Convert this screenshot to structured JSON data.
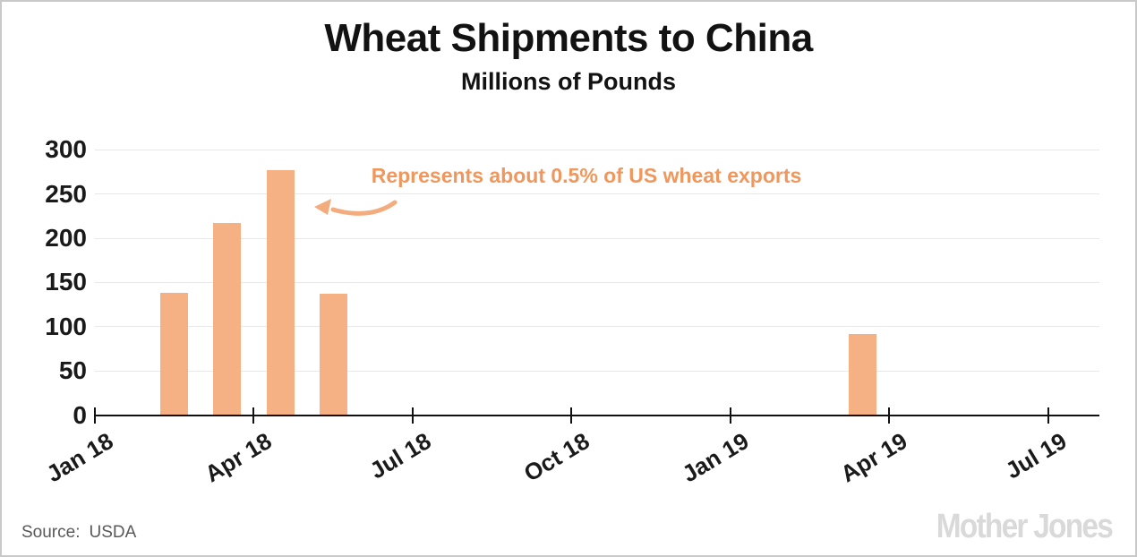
{
  "page": {
    "background": "#ffffff",
    "border_color": "#c9c9c9"
  },
  "header": {
    "title": "Wheat Shipments to China",
    "subtitle": "Millions of Pounds"
  },
  "chart_data": {
    "type": "bar",
    "title": "Wheat Shipments to China",
    "subtitle": "Millions of Pounds",
    "ylabel": "Millions of Pounds",
    "ylim": [
      0,
      300
    ],
    "y_ticks": [
      0,
      50,
      100,
      150,
      200,
      250,
      300
    ],
    "grid": "horizontal",
    "legend": "none",
    "x_ticks": [
      {
        "label": "Jan 18",
        "month_offset": 0
      },
      {
        "label": "Apr 18",
        "month_offset": 3
      },
      {
        "label": "Jul 18",
        "month_offset": 6
      },
      {
        "label": "Oct 18",
        "month_offset": 9
      },
      {
        "label": "Jan 19",
        "month_offset": 12
      },
      {
        "label": "Apr 19",
        "month_offset": 15
      },
      {
        "label": "Jul 19",
        "month_offset": 18
      }
    ],
    "bars": [
      {
        "label": "Feb 18",
        "month_offset": 1,
        "value": 138
      },
      {
        "label": "Mar 18",
        "month_offset": 2,
        "value": 217
      },
      {
        "label": "Apr 18",
        "month_offset": 3,
        "value": 277
      },
      {
        "label": "May 18",
        "month_offset": 4,
        "value": 137
      },
      {
        "label": "Mar 19",
        "month_offset": 14,
        "value": 92
      }
    ],
    "annotation": {
      "text": "Represents about 0.5% of US wheat exports",
      "points_to": "Apr 18 bar"
    },
    "colors": {
      "bar": "#f5b083",
      "annotation_text": "#ef975c",
      "arrow": "#f3ac7e",
      "axis": "#111111",
      "gridline": "#e8e8e8",
      "tick_label": "#1a1a1a"
    }
  },
  "footer": {
    "source_prefix": "Source:",
    "source_value": "USDA",
    "logo_text": "Mother Jones"
  }
}
